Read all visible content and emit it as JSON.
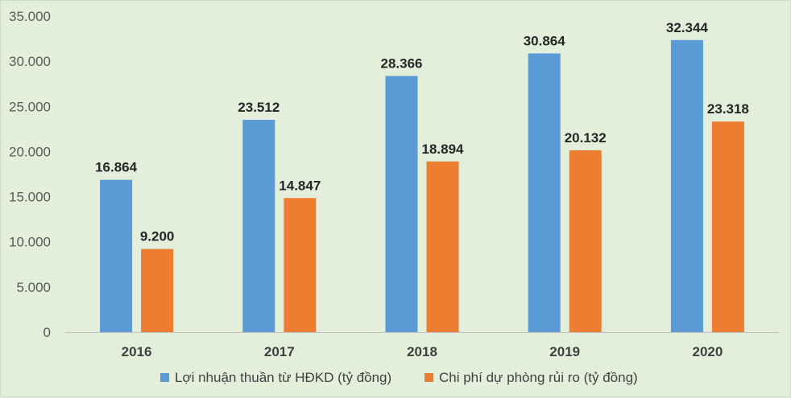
{
  "chart_data": {
    "type": "bar",
    "title": "",
    "xlabel": "",
    "ylabel": "",
    "categories": [
      "2016",
      "2017",
      "2018",
      "2019",
      "2020"
    ],
    "series": [
      {
        "name": "Lợi nhuận thuần từ HĐKD (tỷ đồng)",
        "color": "#5b9bd5",
        "values": [
          16864,
          23512,
          28366,
          30864,
          32344
        ],
        "labels": [
          "16.864",
          "23.512",
          "28.366",
          "30.864",
          "32.344"
        ]
      },
      {
        "name": "Chi phí dự phòng rủi ro (tỷ đồng)",
        "color": "#ed7d31",
        "values": [
          9200,
          14847,
          18894,
          20132,
          23318
        ],
        "labels": [
          "9.200",
          "14.847",
          "18.894",
          "20.132",
          "23.318"
        ]
      }
    ],
    "ylim": [
      0,
      35000
    ],
    "yticks": [
      0,
      5000,
      10000,
      15000,
      20000,
      25000,
      30000,
      35000
    ],
    "ytick_labels": [
      "0",
      "5.000",
      "10.000",
      "15.000",
      "20.000",
      "25.000",
      "30.000",
      "35.000"
    ],
    "grid": false,
    "legend_position": "bottom",
    "background_color": "#e3efda"
  }
}
